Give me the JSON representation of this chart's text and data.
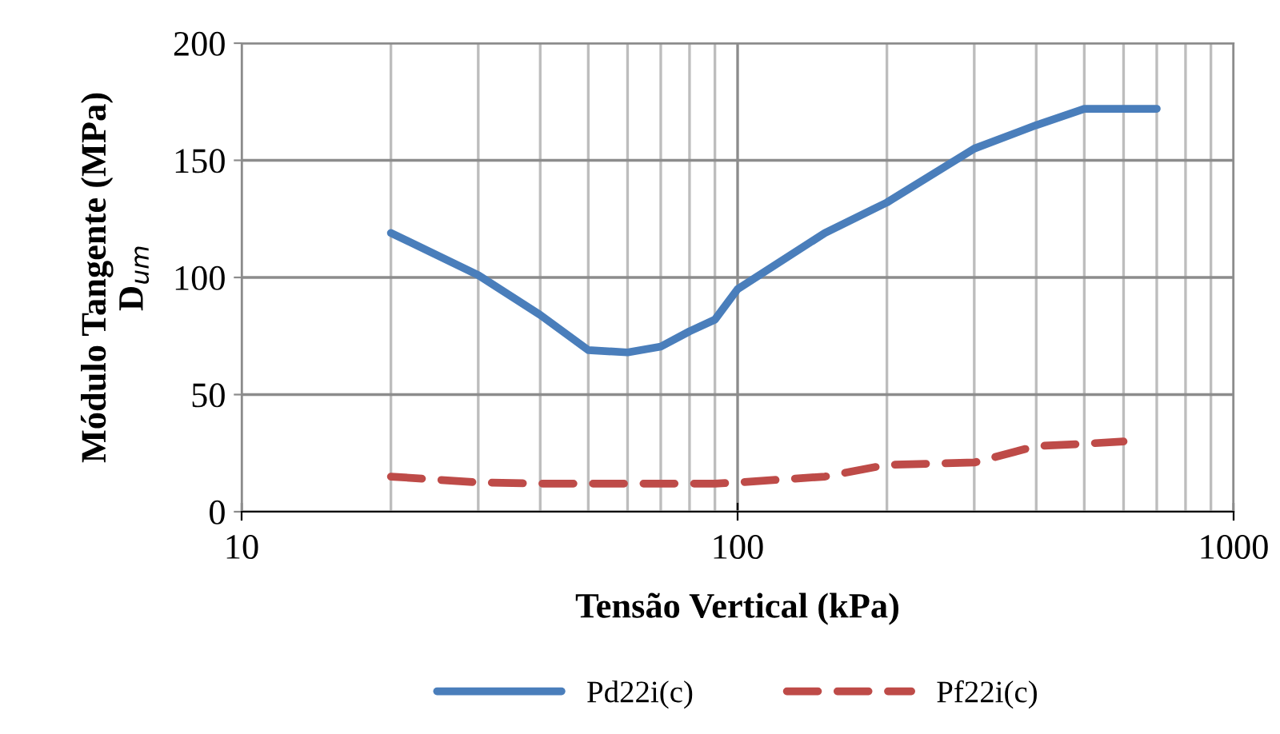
{
  "chart_data": {
    "type": "line",
    "xlabel": "Tensão Vertical (kPa)",
    "ylabel": "Módulo Tangente (MPa)\nD$_{um}$",
    "log": "x",
    "xlim": [
      10,
      1000
    ],
    "xticks": [
      10,
      100,
      1000
    ],
    "ylim": [
      0,
      200
    ],
    "yticks": [
      0,
      50,
      100,
      150,
      200
    ],
    "grid": true,
    "legend": "bottom",
    "series": [
      {
        "name": "Pd22i(c)",
        "color": "#4a7ebb",
        "line_style": "solid",
        "x": [
          20,
          30,
          40,
          50,
          60,
          70,
          80,
          90,
          100,
          150,
          200,
          300,
          400,
          500,
          600,
          700
        ],
        "values": [
          119,
          101,
          84,
          69,
          68,
          70.5,
          77,
          82,
          95,
          119,
          132,
          155,
          165,
          172,
          172,
          172
        ]
      },
      {
        "name": "Pf22i(c)",
        "color": "#be4b48",
        "line_style": "dashed",
        "x": [
          20,
          30,
          40,
          50,
          60,
          70,
          80,
          90,
          100,
          150,
          200,
          300,
          400,
          500,
          600
        ],
        "values": [
          15,
          12.5,
          12,
          12,
          12,
          12,
          12,
          12,
          12.5,
          15,
          20,
          21,
          28,
          29,
          30
        ]
      }
    ]
  }
}
